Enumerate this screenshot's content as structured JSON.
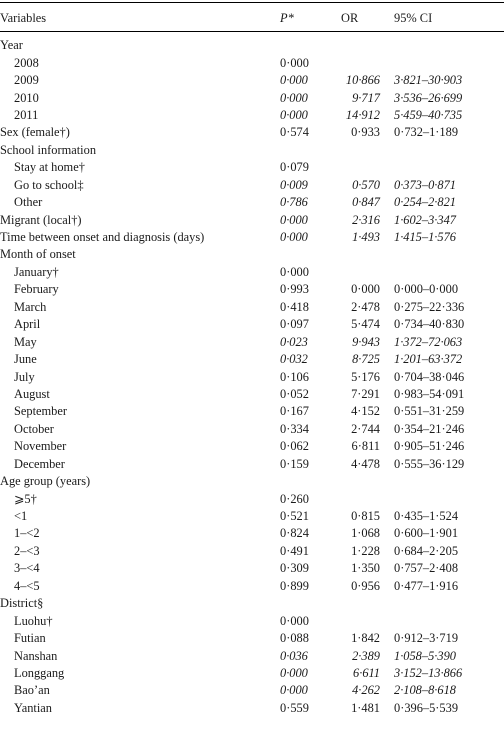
{
  "header": {
    "variables": "Variables",
    "p": "P*",
    "or": "OR",
    "ci": "95% CI"
  },
  "rows": [
    {
      "label": "Year",
      "indent": false,
      "p": "",
      "or": "",
      "ci": "",
      "italic": false
    },
    {
      "label": "2008",
      "indent": true,
      "p": "0·000",
      "or": "",
      "ci": "",
      "italic": false
    },
    {
      "label": "2009",
      "indent": true,
      "p": "0·000",
      "or": "10·866",
      "ci": "3·821–30·903",
      "italic": true
    },
    {
      "label": "2010",
      "indent": true,
      "p": "0·000",
      "or": "9·717",
      "ci": "3·536–26·699",
      "italic": true
    },
    {
      "label": "2011",
      "indent": true,
      "p": "0·000",
      "or": "14·912",
      "ci": "5·459–40·735",
      "italic": true
    },
    {
      "label": "Sex (female†)",
      "indent": false,
      "p": "0·574",
      "or": "0·933",
      "ci": "0·732–1·189",
      "italic": false
    },
    {
      "label": "School information",
      "indent": false,
      "p": "",
      "or": "",
      "ci": "",
      "italic": false
    },
    {
      "label": "Stay at home†",
      "indent": true,
      "p": "0·079",
      "or": "",
      "ci": "",
      "italic": false
    },
    {
      "label": "Go to school‡",
      "indent": true,
      "p": "0·009",
      "or": "0·570",
      "ci": "0·373–0·871",
      "italic": true
    },
    {
      "label": "Other",
      "indent": true,
      "p": "0·786",
      "or": "0·847",
      "ci": "0·254–2·821",
      "italic": true
    },
    {
      "label": "Migrant (local†)",
      "indent": false,
      "p": "0·000",
      "or": "2·316",
      "ci": "1·602–3·347",
      "italic": true
    },
    {
      "label": "Time between onset and diagnosis (days)",
      "indent": false,
      "p": "0·000",
      "or": "1·493",
      "ci": "1·415–1·576",
      "italic": true
    },
    {
      "label": "Month of onset",
      "indent": false,
      "p": "",
      "or": "",
      "ci": "",
      "italic": false
    },
    {
      "label": "January†",
      "indent": true,
      "p": "0·000",
      "or": "",
      "ci": "",
      "italic": false
    },
    {
      "label": "February",
      "indent": true,
      "p": "0·993",
      "or": "0·000",
      "ci": "0·000–0·000",
      "italic": false
    },
    {
      "label": "March",
      "indent": true,
      "p": "0·418",
      "or": "2·478",
      "ci": "0·275–22·336",
      "italic": false
    },
    {
      "label": "April",
      "indent": true,
      "p": "0·097",
      "or": "5·474",
      "ci": "0·734–40·830",
      "italic": false
    },
    {
      "label": "May",
      "indent": true,
      "p": "0·023",
      "or": "9·943",
      "ci": "1·372–72·063",
      "italic": true
    },
    {
      "label": "June",
      "indent": true,
      "p": "0·032",
      "or": "8·725",
      "ci": "1·201–63·372",
      "italic": true
    },
    {
      "label": "July",
      "indent": true,
      "p": "0·106",
      "or": "5·176",
      "ci": "0·704–38·046",
      "italic": false
    },
    {
      "label": "August",
      "indent": true,
      "p": "0·052",
      "or": "7·291",
      "ci": "0·983–54·091",
      "italic": false
    },
    {
      "label": "September",
      "indent": true,
      "p": "0·167",
      "or": "4·152",
      "ci": "0·551–31·259",
      "italic": false
    },
    {
      "label": "October",
      "indent": true,
      "p": "0·334",
      "or": "2·744",
      "ci": "0·354–21·246",
      "italic": false
    },
    {
      "label": "November",
      "indent": true,
      "p": "0·062",
      "or": "6·811",
      "ci": "0·905–51·246",
      "italic": false
    },
    {
      "label": "December",
      "indent": true,
      "p": "0·159",
      "or": "4·478",
      "ci": "0·555–36·129",
      "italic": false
    },
    {
      "label": "Age group (years)",
      "indent": false,
      "p": "",
      "or": "",
      "ci": "",
      "italic": false
    },
    {
      "label": "⩾5†",
      "indent": true,
      "p": "0·260",
      "or": "",
      "ci": "",
      "italic": false
    },
    {
      "label": "<1",
      "indent": true,
      "p": "0·521",
      "or": "0·815",
      "ci": "0·435–1·524",
      "italic": false
    },
    {
      "label": "1–<2",
      "indent": true,
      "p": "0·824",
      "or": "1·068",
      "ci": "0·600–1·901",
      "italic": false
    },
    {
      "label": "2–<3",
      "indent": true,
      "p": "0·491",
      "or": "1·228",
      "ci": "0·684–2·205",
      "italic": false
    },
    {
      "label": "3–<4",
      "indent": true,
      "p": "0·309",
      "or": "1·350",
      "ci": "0·757–2·408",
      "italic": false
    },
    {
      "label": "4–<5",
      "indent": true,
      "p": "0·899",
      "or": "0·956",
      "ci": "0·477–1·916",
      "italic": false
    },
    {
      "label": "District§",
      "indent": false,
      "p": "",
      "or": "",
      "ci": "",
      "italic": false
    },
    {
      "label": "Luohu†",
      "indent": true,
      "p": "0·000",
      "or": "",
      "ci": "",
      "italic": false
    },
    {
      "label": "Futian",
      "indent": true,
      "p": "0·088",
      "or": "1·842",
      "ci": "0·912–3·719",
      "italic": false
    },
    {
      "label": "Nanshan",
      "indent": true,
      "p": "0·036",
      "or": "2·389",
      "ci": "1·058–5·390",
      "italic": true
    },
    {
      "label": "Longgang",
      "indent": true,
      "p": "0·000",
      "or": "6·611",
      "ci": "3·152–13·866",
      "italic": true
    },
    {
      "label": "Bao’an",
      "indent": true,
      "p": "0·000",
      "or": "4·262",
      "ci": "2·108–8·618",
      "italic": true
    },
    {
      "label": "Yantian",
      "indent": true,
      "p": "0·559",
      "or": "1·481",
      "ci": "0·396–5·539",
      "italic": false
    }
  ]
}
